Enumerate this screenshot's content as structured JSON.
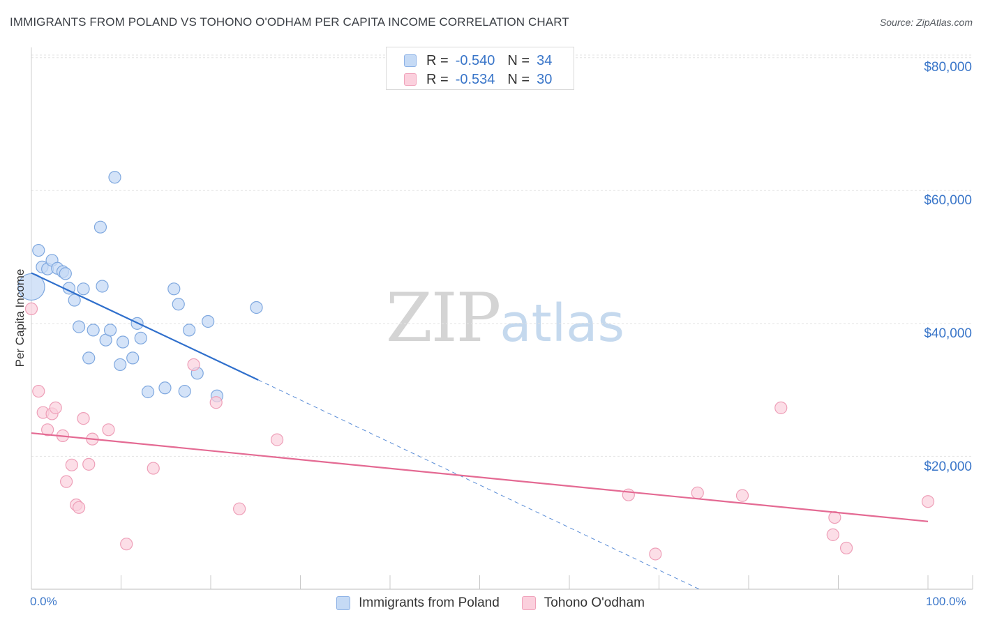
{
  "header": {
    "title": "IMMIGRANTS FROM POLAND VS TOHONO O'ODHAM PER CAPITA INCOME CORRELATION CHART",
    "source": "Source: ZipAtlas.com"
  },
  "legend": {
    "rows": [
      {
        "r_label": "R =",
        "r_value": "-0.540",
        "n_label": "N =",
        "n_value": "34"
      },
      {
        "r_label": "R =",
        "r_value": "-0.534",
        "n_label": "N =",
        "n_value": "30"
      }
    ]
  },
  "watermark": {
    "zip": "ZIP",
    "atlas": "atlas"
  },
  "colors": {
    "blue_fill": "#c5daf5",
    "blue_stroke": "#7fa8df",
    "blue_line": "#2f6fcc",
    "pink_fill": "#fbd0dd",
    "pink_stroke": "#ee9fb8",
    "pink_line": "#e46a93",
    "grid": "#e3e3e3",
    "axis_label": "#3a76c9"
  },
  "chart_data": {
    "type": "scatter",
    "title": "IMMIGRANTS FROM POLAND VS TOHONO O'ODHAM PER CAPITA INCOME CORRELATION CHART",
    "xlabel": "",
    "ylabel": "Per Capita Income",
    "xlim": [
      0,
      100
    ],
    "ylim": [
      0,
      80000
    ],
    "x_tick_labels": [
      "0.0%",
      "100.0%"
    ],
    "y_ticks": [
      20000,
      40000,
      60000,
      80000
    ],
    "y_tick_labels": [
      "$20,000",
      "$40,000",
      "$60,000",
      "$80,000"
    ],
    "grid": true,
    "legend_position": "bottom",
    "series": [
      {
        "name": "Immigrants from Poland",
        "r": -0.54,
        "n": 34,
        "points": [
          [
            0.0,
            45500
          ],
          [
            0.8,
            51000
          ],
          [
            1.2,
            48500
          ],
          [
            1.8,
            48200
          ],
          [
            2.3,
            49500
          ],
          [
            2.9,
            48300
          ],
          [
            3.5,
            47800
          ],
          [
            3.8,
            47500
          ],
          [
            4.2,
            45300
          ],
          [
            4.8,
            43500
          ],
          [
            5.3,
            39500
          ],
          [
            5.8,
            45200
          ],
          [
            6.4,
            34800
          ],
          [
            6.9,
            39000
          ],
          [
            7.7,
            54500
          ],
          [
            7.9,
            45600
          ],
          [
            8.3,
            37500
          ],
          [
            8.8,
            39000
          ],
          [
            9.3,
            62000
          ],
          [
            9.9,
            33800
          ],
          [
            10.2,
            37200
          ],
          [
            11.3,
            34800
          ],
          [
            11.8,
            40000
          ],
          [
            12.2,
            37800
          ],
          [
            13.0,
            29700
          ],
          [
            14.9,
            30300
          ],
          [
            15.9,
            45200
          ],
          [
            16.4,
            42900
          ],
          [
            17.1,
            29800
          ],
          [
            17.6,
            39000
          ],
          [
            18.5,
            32500
          ],
          [
            19.7,
            40300
          ],
          [
            20.7,
            29100
          ],
          [
            25.1,
            42400
          ]
        ],
        "trend": {
          "x": [
            0,
            25.3
          ],
          "y": [
            47600,
            31500
          ]
        },
        "trend_extension": {
          "x": [
            25.3,
            74.5
          ],
          "y": [
            31500,
            0
          ]
        }
      },
      {
        "name": "Tohono O'odham",
        "r": -0.534,
        "n": 30,
        "points": [
          [
            0.0,
            42200
          ],
          [
            0.8,
            29800
          ],
          [
            1.3,
            26600
          ],
          [
            1.8,
            24000
          ],
          [
            2.3,
            26400
          ],
          [
            2.7,
            27300
          ],
          [
            3.5,
            23100
          ],
          [
            3.9,
            16200
          ],
          [
            4.5,
            18700
          ],
          [
            5.0,
            12700
          ],
          [
            5.3,
            12300
          ],
          [
            5.8,
            25700
          ],
          [
            6.4,
            18800
          ],
          [
            6.8,
            22600
          ],
          [
            8.6,
            24000
          ],
          [
            10.6,
            6800
          ],
          [
            13.6,
            18200
          ],
          [
            18.1,
            33800
          ],
          [
            20.6,
            28100
          ],
          [
            23.2,
            12100
          ],
          [
            27.4,
            22500
          ],
          [
            66.6,
            14200
          ],
          [
            69.6,
            5300
          ],
          [
            74.3,
            14500
          ],
          [
            79.3,
            14100
          ],
          [
            83.6,
            27300
          ],
          [
            89.4,
            8200
          ],
          [
            89.6,
            10800
          ],
          [
            90.9,
            6200
          ],
          [
            100.0,
            13200
          ]
        ],
        "trend": {
          "x": [
            0,
            100
          ],
          "y": [
            23500,
            10200
          ]
        }
      }
    ]
  },
  "bottom_legend": {
    "items": [
      "Immigrants from Poland",
      "Tohono O'odham"
    ]
  }
}
